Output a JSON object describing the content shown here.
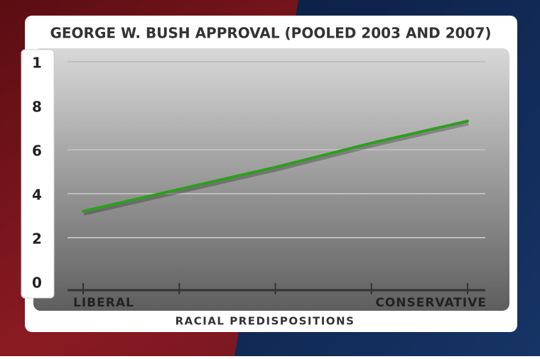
{
  "chart_data": {
    "type": "line",
    "title": "GEORGE W. BUSH APPROVAL (POOLED 2003 AND 2007)",
    "x_label": "RACIAL PREDISPOSITIONS",
    "categories": [
      "LIBERAL",
      null,
      null,
      null,
      "CONSERVATIVE"
    ],
    "values": [
      3.2,
      4.2,
      5.2,
      6.3,
      7.3
    ],
    "color": "#2e9e1f",
    "ylim": [
      0,
      10
    ],
    "yticks": [
      0,
      2,
      4,
      6,
      8,
      {
        "value": 10,
        "label": "1"
      }
    ],
    "grid": true
  }
}
